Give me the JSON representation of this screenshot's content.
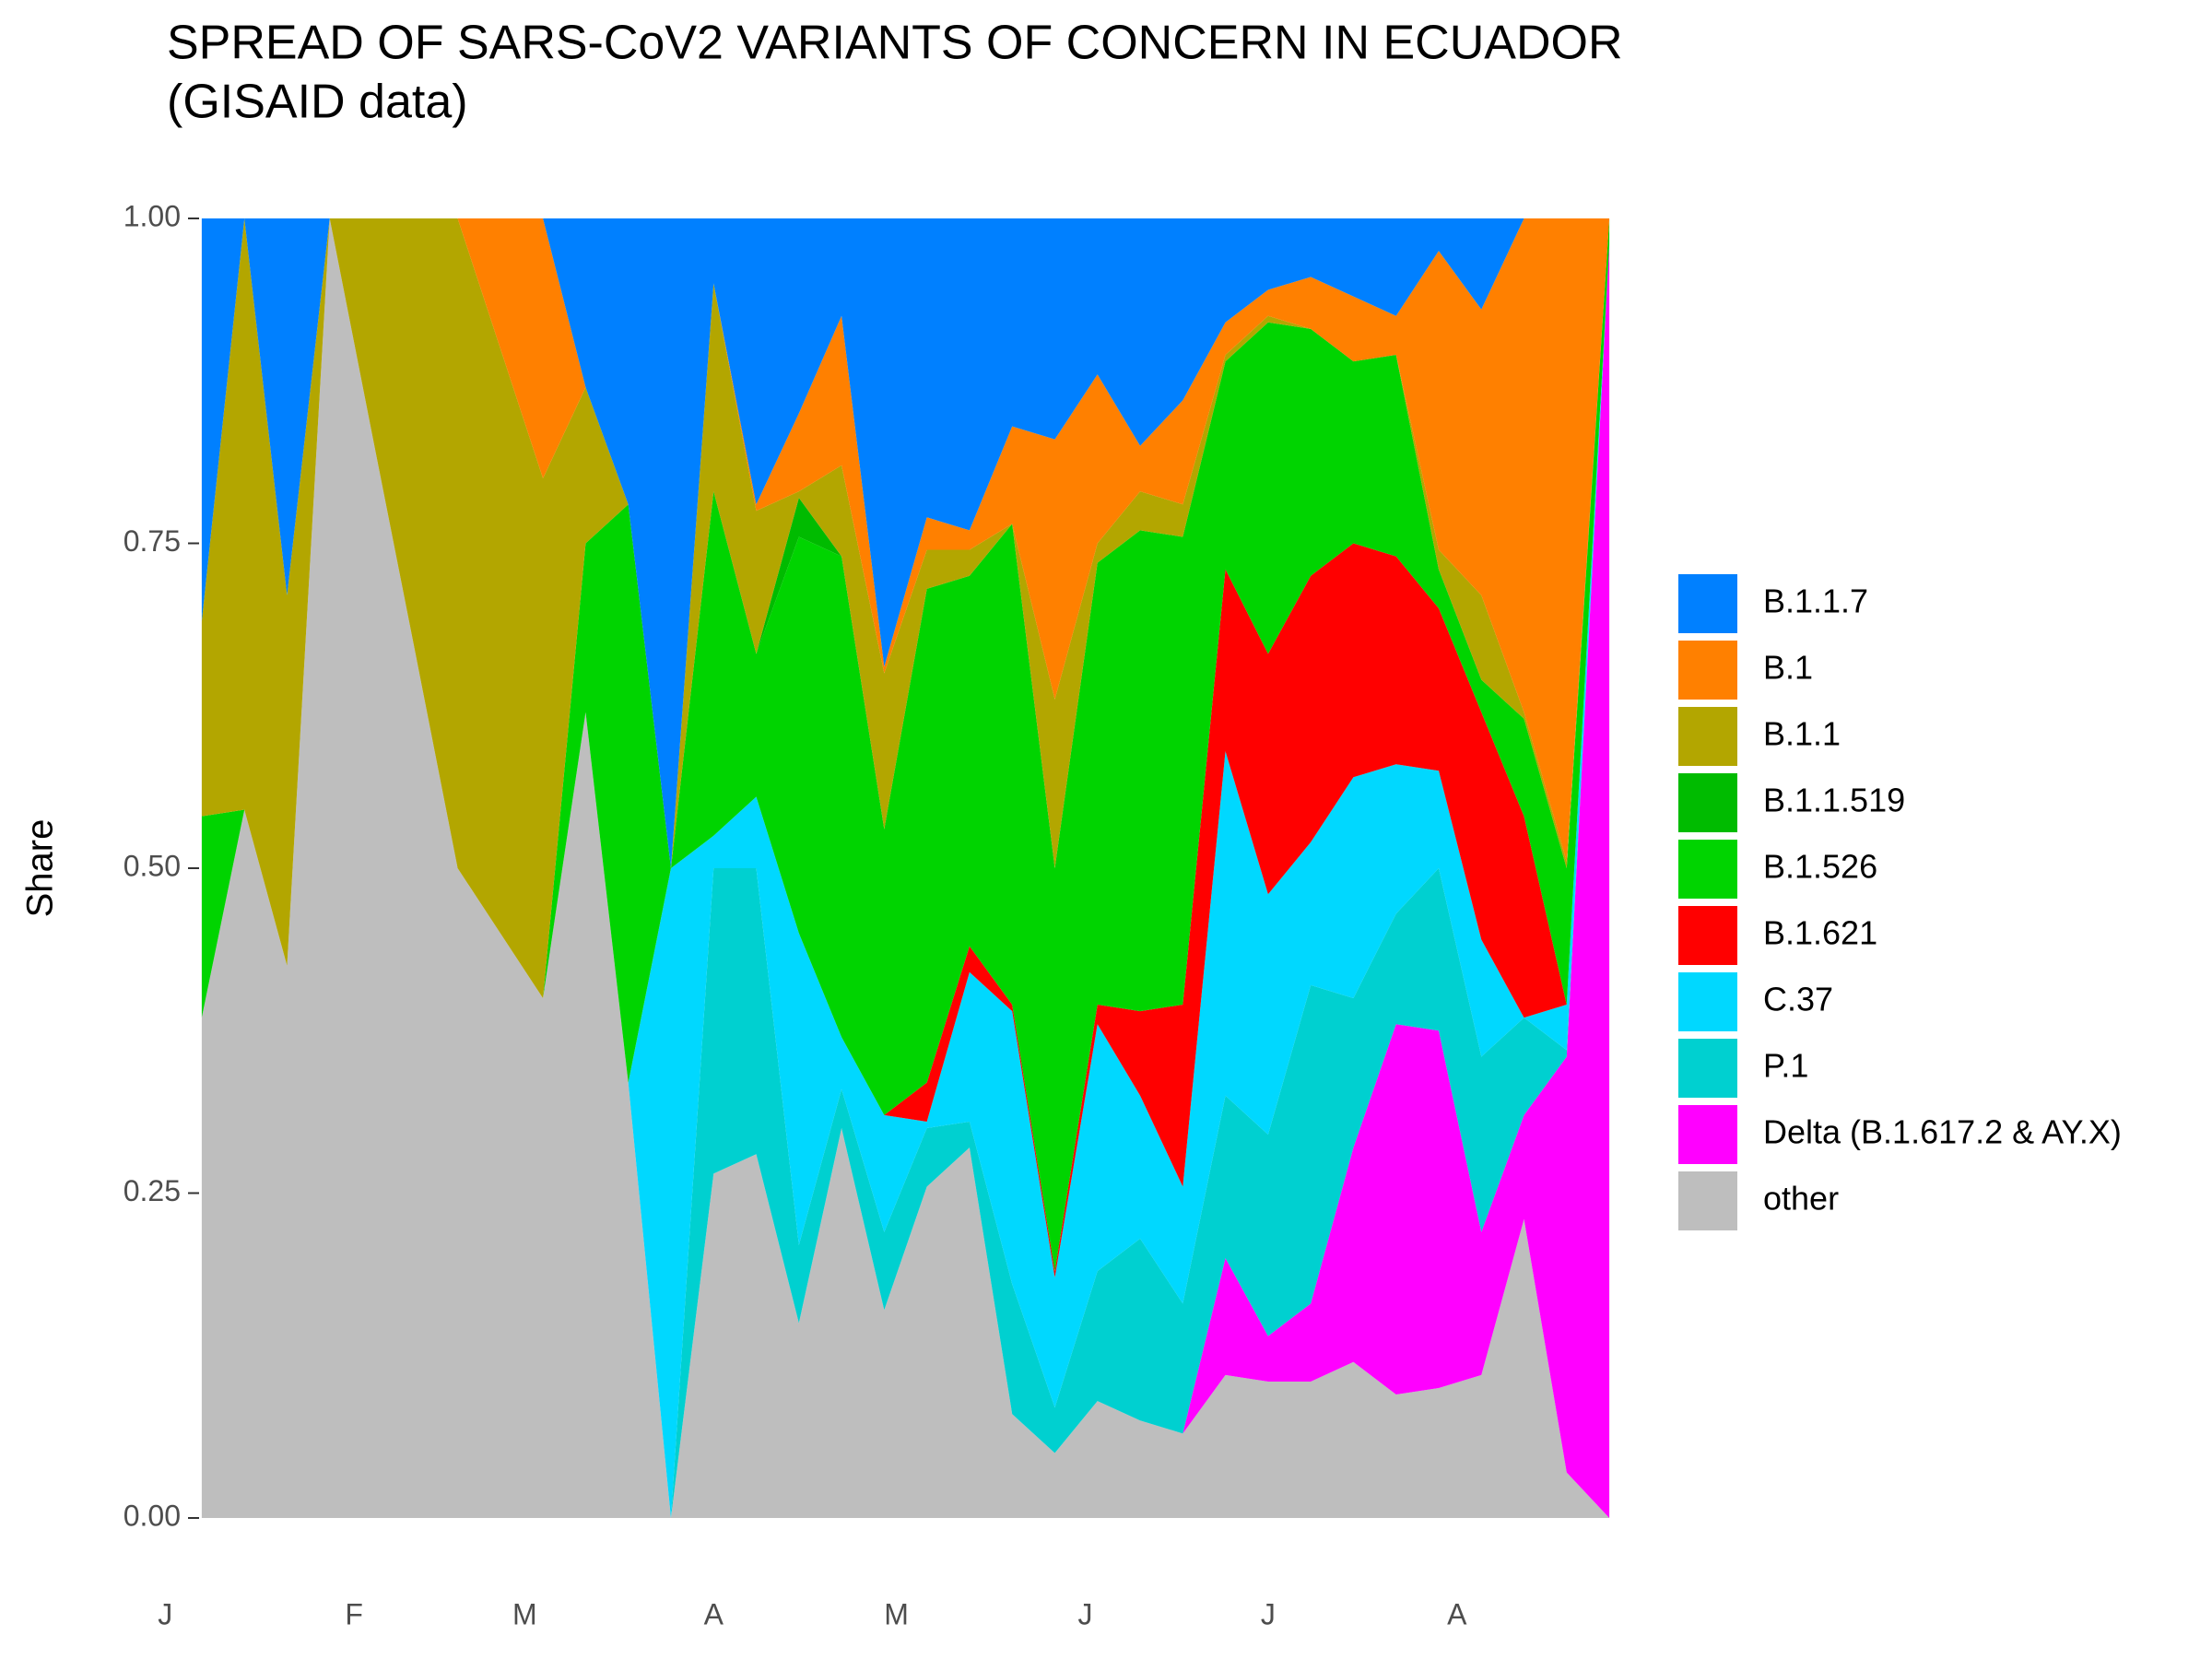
{
  "chart_data": {
    "type": "stacked-area",
    "title": "SPREAD OF SARS-CoV2 VARIANTS OF CONCERN IN ECUADOR",
    "subtitle": "(GISAID data)",
    "y_label": "Share",
    "x": [
      7,
      14,
      21,
      28,
      35,
      42,
      49,
      56,
      63,
      70,
      77,
      84,
      91,
      98,
      105,
      112,
      119,
      126,
      133,
      140,
      147,
      154,
      161,
      168,
      175,
      182,
      189,
      196,
      203,
      210,
      217,
      224,
      231,
      238
    ],
    "xlim": [
      -1,
      246
    ],
    "xticks": [
      {
        "value": 1,
        "label": "J"
      },
      {
        "value": 32,
        "label": "F"
      },
      {
        "value": 60,
        "label": "M"
      },
      {
        "value": 91,
        "label": "A"
      },
      {
        "value": 121,
        "label": "M"
      },
      {
        "value": 152,
        "label": "J"
      },
      {
        "value": 182,
        "label": "J"
      },
      {
        "value": 213,
        "label": "A"
      }
    ],
    "ylim": [
      0,
      1
    ],
    "yticks": [
      {
        "value": 0,
        "label": "0.00"
      },
      {
        "value": 0.25,
        "label": "0.25"
      },
      {
        "value": 0.5,
        "label": "0.50"
      },
      {
        "value": 0.75,
        "label": "0.75"
      },
      {
        "value": 1,
        "label": "1.00"
      }
    ],
    "legend": "right",
    "series": [
      {
        "name": "B.1.1.7",
        "color": "#0080ff",
        "values": [
          0.31,
          0,
          0.29,
          0,
          0,
          0,
          0,
          0,
          0,
          0.13,
          0.22,
          0.5,
          0.05,
          0.22,
          0.15,
          0.075,
          0.345,
          0.23,
          0.24,
          0.16,
          0.17,
          0.12,
          0.175,
          0.14,
          0.08,
          0.055,
          0.045,
          0.06,
          0.075,
          0.025,
          0.07,
          0,
          0,
          0
        ]
      },
      {
        "name": "B.1",
        "color": "#ff8000",
        "values": [
          0,
          0,
          0,
          0,
          0,
          0,
          0,
          0.1,
          0.2,
          0,
          0,
          0,
          0,
          0.005,
          0.06,
          0.115,
          0.005,
          0.025,
          0.015,
          0.075,
          0.2,
          0.13,
          0.035,
          0.08,
          0.025,
          0.02,
          0.04,
          0.05,
          0.03,
          0.23,
          0.22,
          0.38,
          0.495,
          0
        ]
      },
      {
        "name": "B.1.1",
        "color": "#b3a600",
        "values": [
          0.15,
          0.455,
          0.285,
          0,
          0.167,
          0.333,
          0.5,
          0.45,
          0.4,
          0.12,
          0,
          0,
          0.16,
          0.11,
          0.005,
          0.07,
          0.12,
          0.03,
          0.02,
          0,
          0.13,
          0.015,
          0.03,
          0.025,
          0.005,
          0.005,
          0,
          0,
          0,
          0.015,
          0.065,
          0.005,
          0.005,
          0
        ]
      },
      {
        "name": "B.1.1.519",
        "color": "#00bb00",
        "values": [
          0,
          0,
          0,
          0,
          0,
          0,
          0,
          0,
          0,
          0,
          0,
          0,
          0,
          0,
          0.03,
          0,
          0,
          0,
          0,
          0,
          0,
          0,
          0,
          0,
          0,
          0,
          0,
          0,
          0,
          0,
          0,
          0,
          0,
          0
        ]
      },
      {
        "name": "B.1.526",
        "color": "#00d400",
        "values": [
          0.155,
          0,
          0,
          0,
          0,
          0,
          0,
          0,
          0,
          0.13,
          0.445,
          0,
          0.265,
          0.11,
          0.305,
          0.37,
          0.22,
          0.38,
          0.285,
          0.37,
          0.31,
          0.34,
          0.37,
          0.36,
          0.16,
          0.255,
          0.19,
          0.14,
          0.155,
          0.03,
          0.025,
          0.075,
          0.105,
          0.02
        ]
      },
      {
        "name": "B.1.621",
        "color": "#ff0000",
        "values": [
          0,
          0,
          0,
          0,
          0,
          0,
          0,
          0,
          0,
          0,
          0,
          0,
          0,
          0,
          0,
          0,
          0,
          0.03,
          0.02,
          0.005,
          0.005,
          0.015,
          0.065,
          0.14,
          0.14,
          0.185,
          0.205,
          0.18,
          0.16,
          0.125,
          0.175,
          0.155,
          0,
          0
        ]
      },
      {
        "name": "C.37",
        "color": "#00d8ff",
        "values": [
          0,
          0,
          0,
          0,
          0,
          0,
          0,
          0,
          0,
          0,
          0,
          0.5,
          0.025,
          0.055,
          0.24,
          0.04,
          0.09,
          0.005,
          0.115,
          0.21,
          0.1,
          0.19,
          0.11,
          0.09,
          0.265,
          0.185,
          0.11,
          0.17,
          0.115,
          0.075,
          0.09,
          0,
          0.035,
          0
        ]
      },
      {
        "name": "P.1",
        "color": "#00d0d0",
        "values": [
          0,
          0,
          0,
          0,
          0,
          0,
          0,
          0,
          0,
          0,
          0,
          0,
          0.235,
          0.22,
          0.06,
          0.03,
          0.06,
          0.045,
          0.02,
          0.1,
          0.035,
          0.1,
          0.14,
          0.1,
          0.125,
          0.155,
          0.245,
          0.115,
          0.085,
          0.125,
          0.135,
          0.075,
          0.005,
          0
        ]
      },
      {
        "name": "Delta (B.1.617.2 & AY.X)",
        "color": "#ff00ff",
        "values": [
          0,
          0,
          0,
          0,
          0,
          0,
          0,
          0,
          0,
          0,
          0,
          0,
          0,
          0,
          0,
          0,
          0,
          0,
          0,
          0,
          0,
          0,
          0,
          0,
          0.09,
          0.035,
          0.06,
          0.165,
          0.285,
          0.275,
          0.11,
          0.08,
          0.32,
          0.98
        ]
      },
      {
        "name": "other",
        "color": "#bebebe",
        "values": [
          0.385,
          0.545,
          0.425,
          1,
          0.833,
          0.667,
          0.5,
          0.45,
          0.4,
          0.62,
          0.335,
          0,
          0.265,
          0.28,
          0.15,
          0.3,
          0.16,
          0.255,
          0.285,
          0.08,
          0.05,
          0.09,
          0.075,
          0.065,
          0.11,
          0.105,
          0.105,
          0.12,
          0.095,
          0.1,
          0.11,
          0.23,
          0.035,
          0
        ]
      }
    ]
  }
}
